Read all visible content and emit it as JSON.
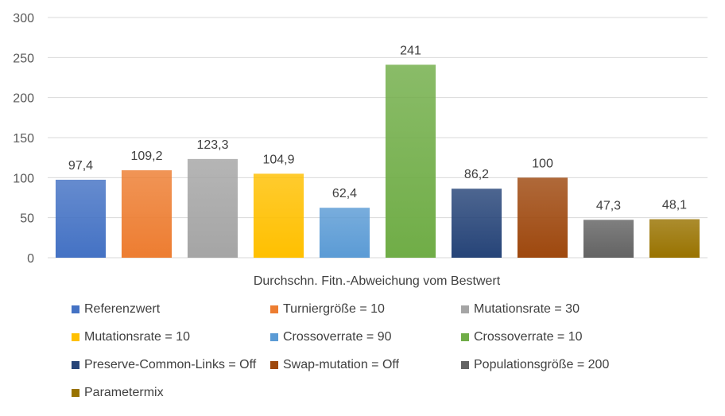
{
  "chart_data": {
    "type": "bar",
    "title": "",
    "xlabel": "Durchschn. Fitn.-Abweichung vom Bestwert",
    "ylabel": "",
    "ylim": [
      0,
      300
    ],
    "yticks": [
      "0",
      "50",
      "100",
      "150",
      "200",
      "250",
      "300"
    ],
    "grid": true,
    "legend_position": "bottom",
    "series": [
      {
        "name": "Referenzwert",
        "value": 97.4,
        "label": "97,4",
        "color": "#4472C4"
      },
      {
        "name": "Turniergröße = 10",
        "value": 109.2,
        "label": "109,2",
        "color": "#ED7D31"
      },
      {
        "name": "Mutationsrate = 30",
        "value": 123.3,
        "label": "123,3",
        "color": "#A5A5A5"
      },
      {
        "name": "Mutationsrate = 10",
        "value": 104.9,
        "label": "104,9",
        "color": "#FFC000"
      },
      {
        "name": "Crossoverrate = 90",
        "value": 62.4,
        "label": "62,4",
        "color": "#5B9BD5"
      },
      {
        "name": "Crossoverrate = 10",
        "value": 241,
        "label": "241",
        "color": "#70AD47"
      },
      {
        "name": "Preserve-Common-Links = Off",
        "value": 86.2,
        "label": "86,2",
        "color": "#264478"
      },
      {
        "name": "Swap-mutation = Off",
        "value": 100,
        "label": "100",
        "color": "#9E480E"
      },
      {
        "name": "Populationsgröße = 200",
        "value": 47.3,
        "label": "47,3",
        "color": "#636363"
      },
      {
        "name": "Parametermix",
        "value": 48.1,
        "label": "48,1",
        "color": "#997300"
      }
    ]
  }
}
